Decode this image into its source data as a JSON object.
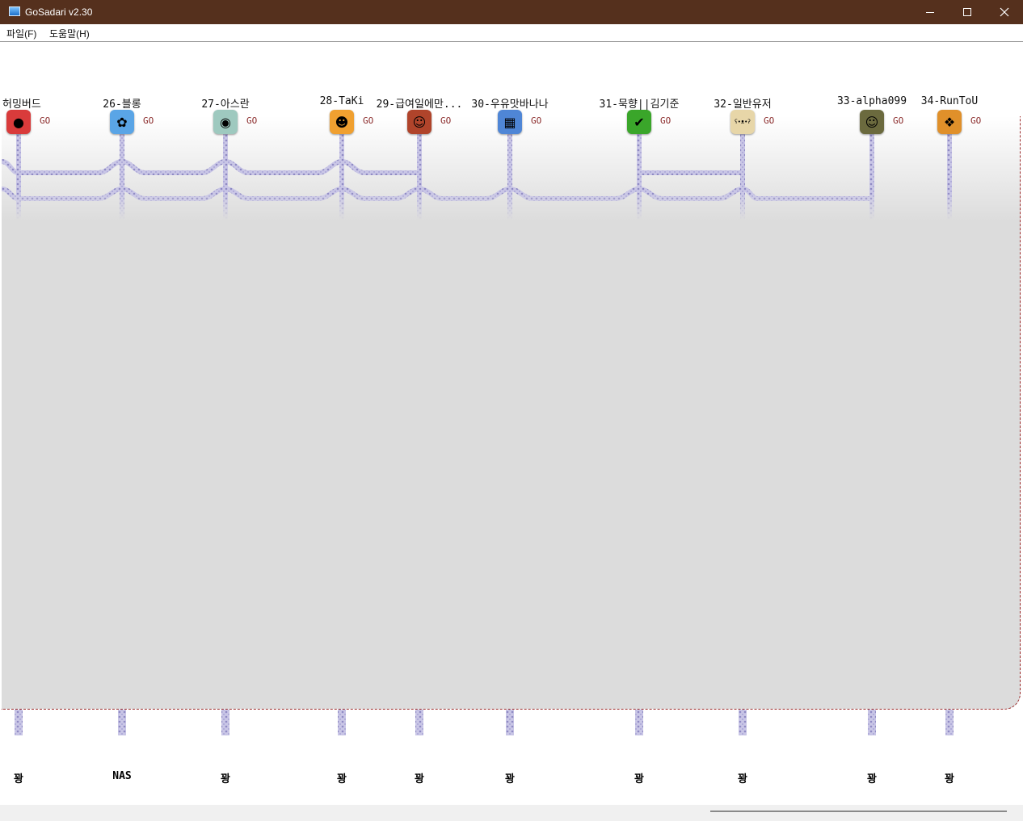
{
  "window": {
    "title": "GoSadari v2.30"
  },
  "menu": {
    "items": [
      "파일(F)",
      "도움말(H)"
    ]
  },
  "go_label": "GO",
  "players": [
    {
      "name": "-허밍버드",
      "result": "꽝",
      "icon": "angry-bird-icon",
      "color": "#d93b3b",
      "glyph": "●"
    },
    {
      "name": "26-블롱",
      "result": "NAS",
      "icon": "photos-flower-icon",
      "color": "#5aa5e6",
      "glyph": "✿"
    },
    {
      "name": "27-아스란",
      "result": "꽝",
      "icon": "goggles-character-icon",
      "color": "#9ec9bf",
      "glyph": "◉"
    },
    {
      "name": "28-TaKi",
      "result": "꽝",
      "icon": "tiger-face-icon",
      "color": "#f0a030",
      "glyph": "☻"
    },
    {
      "name": "29-급여일에만...",
      "result": "꽝",
      "icon": "red-hair-character-icon",
      "color": "#b0442b",
      "glyph": "☺"
    },
    {
      "name": "30-우유맛바나나",
      "result": "꽝",
      "icon": "calculator-icon",
      "color": "#4f86d6",
      "glyph": "▦"
    },
    {
      "name": "31-묵향||김기준",
      "result": "꽝",
      "icon": "checkmark-icon",
      "color": "#3aa62a",
      "glyph": "✔"
    },
    {
      "name": "32-일반유저",
      "result": "꽝",
      "icon": "teddy-bear-icon",
      "color": "#e7d6a8",
      "glyph": "ʕ•ᴥ•ʔ"
    },
    {
      "name": "33-alpha099",
      "result": "꽝",
      "icon": "mona-lisa-icon",
      "color": "#6b6a3e",
      "glyph": "☺"
    },
    {
      "name": "34-RunToU",
      "result": "꽝",
      "icon": "gift-box-icon",
      "color": "#e0902a",
      "glyph": "❖"
    }
  ]
}
